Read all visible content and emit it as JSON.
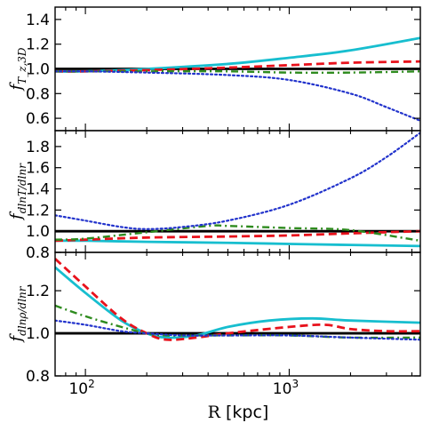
{
  "figure": {
    "xlabel_prefix": "R",
    "xlabel_unit": "[kpc]",
    "xtick_labels": [
      {
        "base": "10",
        "exp": "2",
        "value": 100
      },
      {
        "base": "10",
        "exp": "3",
        "value": 1000
      }
    ]
  },
  "colors": {
    "black": "#000000",
    "cyan": "#17becf",
    "red": "#e8121c",
    "green": "#2e8b1e",
    "blue": "#2233cc"
  },
  "chart_data": [
    {
      "type": "line",
      "panel": "top",
      "ylabel_main": "f",
      "ylabel_sub": "T_z,3D",
      "xscale": "log",
      "xlim": [
        71,
        4400
      ],
      "ylim": [
        0.5,
        1.5
      ],
      "yticks": [
        0.6,
        0.8,
        1.0,
        1.2,
        1.4
      ],
      "ytick_labels": [
        "0.6",
        "0.8",
        "1.0",
        "1.2",
        "1.4"
      ],
      "series": [
        {
          "style": "solid",
          "color": "black",
          "x": [
            71,
            4400
          ],
          "y": [
            1.0,
            1.0
          ]
        },
        {
          "style": "solid",
          "color": "cyan",
          "x": [
            71,
            100,
            200,
            500,
            1000,
            2000,
            4400
          ],
          "y": [
            0.98,
            0.98,
            1.0,
            1.04,
            1.09,
            1.15,
            1.25
          ]
        },
        {
          "style": "dashed",
          "color": "red",
          "x": [
            71,
            100,
            200,
            500,
            1000,
            2000,
            4400
          ],
          "y": [
            0.98,
            0.98,
            0.99,
            1.01,
            1.03,
            1.05,
            1.06
          ]
        },
        {
          "style": "dashdot",
          "color": "green",
          "x": [
            71,
            100,
            200,
            500,
            1000,
            2000,
            4400
          ],
          "y": [
            0.98,
            0.98,
            0.98,
            0.98,
            0.97,
            0.97,
            0.98
          ]
        },
        {
          "style": "dotted",
          "color": "blue",
          "x": [
            71,
            100,
            200,
            500,
            1000,
            2000,
            3000,
            4400
          ],
          "y": [
            0.98,
            0.98,
            0.97,
            0.95,
            0.91,
            0.8,
            0.69,
            0.58
          ]
        }
      ]
    },
    {
      "type": "line",
      "panel": "middle",
      "ylabel_main": "f",
      "ylabel_sub": "dlnT/dlnr",
      "xscale": "log",
      "xlim": [
        71,
        4400
      ],
      "ylim": [
        0.8,
        1.95
      ],
      "yticks": [
        0.8,
        1.0,
        1.2,
        1.4,
        1.6,
        1.8
      ],
      "ytick_labels": [
        "0.8",
        "1.0",
        "1.2",
        "1.4",
        "1.6",
        "1.8"
      ],
      "series": [
        {
          "style": "solid",
          "color": "black",
          "x": [
            71,
            4400
          ],
          "y": [
            1.0,
            1.0
          ]
        },
        {
          "style": "solid",
          "color": "cyan",
          "x": [
            71,
            100,
            200,
            500,
            1000,
            2000,
            4400
          ],
          "y": [
            0.91,
            0.91,
            0.9,
            0.89,
            0.88,
            0.87,
            0.86
          ]
        },
        {
          "style": "dashed",
          "color": "red",
          "x": [
            71,
            100,
            200,
            500,
            1000,
            2000,
            4400
          ],
          "y": [
            0.91,
            0.92,
            0.94,
            0.95,
            0.96,
            0.98,
            1.0
          ]
        },
        {
          "style": "dashdot",
          "color": "green",
          "x": [
            71,
            100,
            200,
            400,
            500,
            1000,
            2000,
            4400
          ],
          "y": [
            0.92,
            0.93,
            0.99,
            1.05,
            1.05,
            1.03,
            1.01,
            0.91
          ]
        },
        {
          "style": "dotted",
          "color": "blue",
          "x": [
            71,
            100,
            150,
            200,
            300,
            500,
            1000,
            2000,
            3000,
            4400
          ],
          "y": [
            1.15,
            1.1,
            1.04,
            1.02,
            1.04,
            1.1,
            1.25,
            1.5,
            1.7,
            1.93
          ]
        }
      ]
    },
    {
      "type": "line",
      "panel": "bottom",
      "ylabel_main": "f",
      "ylabel_sub": "dlnρ/dlnr",
      "xlabel": "R [kpc]",
      "xscale": "log",
      "xlim": [
        71,
        4400
      ],
      "ylim": [
        0.8,
        1.38
      ],
      "yticks": [
        0.8,
        1.0,
        1.2
      ],
      "ytick_labels": [
        "0.8",
        "1.0",
        "1.2"
      ],
      "series": [
        {
          "style": "solid",
          "color": "black",
          "x": [
            71,
            4400
          ],
          "y": [
            1.0,
            1.0
          ]
        },
        {
          "style": "solid",
          "color": "cyan",
          "x": [
            71,
            100,
            150,
            200,
            250,
            350,
            500,
            800,
            1300,
            2000,
            4400
          ],
          "y": [
            1.31,
            1.19,
            1.06,
            1.0,
            0.98,
            0.99,
            1.03,
            1.06,
            1.07,
            1.06,
            1.05
          ]
        },
        {
          "style": "dashed",
          "color": "red",
          "x": [
            71,
            100,
            150,
            200,
            250,
            350,
            500,
            1000,
            1500,
            2000,
            3000,
            4400
          ],
          "y": [
            1.35,
            1.22,
            1.07,
            1.0,
            0.97,
            0.98,
            1.0,
            1.03,
            1.04,
            1.02,
            1.01,
            1.01
          ]
        },
        {
          "style": "dashdot",
          "color": "green",
          "x": [
            71,
            100,
            150,
            200,
            250,
            350,
            500,
            1000,
            2000,
            4400
          ],
          "y": [
            1.13,
            1.08,
            1.03,
            1.0,
            0.99,
            0.99,
            0.99,
            0.99,
            0.98,
            0.98
          ]
        },
        {
          "style": "dotted",
          "color": "blue",
          "x": [
            71,
            100,
            150,
            200,
            300,
            500,
            1000,
            2000,
            4400
          ],
          "y": [
            1.06,
            1.04,
            1.01,
            1.0,
            0.99,
            0.99,
            0.99,
            0.98,
            0.97
          ]
        }
      ]
    }
  ]
}
